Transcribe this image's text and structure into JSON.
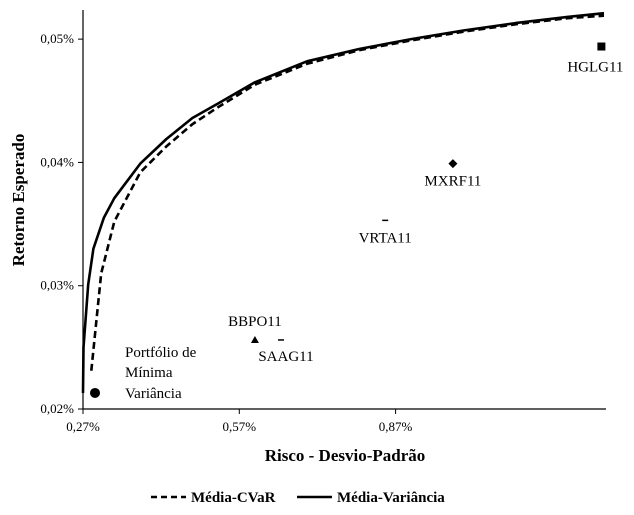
{
  "chart_data": {
    "type": "line",
    "xlabel": "Risco - Desvio-Padrão",
    "ylabel": "Retorno Esperado",
    "xlim": [
      0.27,
      1.27
    ],
    "ylim": [
      0.02,
      0.0522
    ],
    "xticks": [
      0.27,
      0.57,
      0.87
    ],
    "xtick_labels": [
      "0,27%",
      "0,57%",
      "0,87%"
    ],
    "yticks": [
      0.02,
      0.03,
      0.04,
      0.05
    ],
    "ytick_labels": [
      "0,02%",
      "0,03%",
      "0,04%",
      "0,05%"
    ],
    "grid": false,
    "legend_position": "bottom",
    "series": [
      {
        "name": "Média-CVaR",
        "style": "dashed",
        "color": "#000000",
        "x": [
          0.286,
          0.305,
          0.33,
          0.38,
          0.43,
          0.48,
          0.53,
          0.6,
          0.7,
          0.8,
          0.9,
          1.0,
          1.1,
          1.2,
          1.27
        ],
        "y": [
          0.0231,
          0.031,
          0.0352,
          0.0392,
          0.0413,
          0.0431,
          0.0445,
          0.0463,
          0.048,
          0.0491,
          0.0499,
          0.0506,
          0.0512,
          0.0517,
          0.0519
        ]
      },
      {
        "name": "Média-Variância",
        "style": "solid",
        "color": "#000000",
        "x": [
          0.27,
          0.271,
          0.28,
          0.29,
          0.31,
          0.33,
          0.38,
          0.43,
          0.48,
          0.53,
          0.6,
          0.7,
          0.8,
          0.9,
          1.0,
          1.1,
          1.2,
          1.27
        ],
        "y": [
          0.0213,
          0.025,
          0.0301,
          0.033,
          0.0355,
          0.0371,
          0.0399,
          0.0419,
          0.0436,
          0.0448,
          0.0465,
          0.0482,
          0.0492,
          0.05,
          0.0507,
          0.0513,
          0.0518,
          0.0521
        ]
      }
    ],
    "points": [
      {
        "label": "HGLG11",
        "x": 1.265,
        "y": 0.0494,
        "marker": "square",
        "label_pos": "below-left"
      },
      {
        "label": "MXRF11",
        "x": 0.98,
        "y": 0.0399,
        "marker": "diamond",
        "label_pos": "below"
      },
      {
        "label": "VRTA11",
        "x": 0.85,
        "y": 0.0353,
        "marker": "dash",
        "label_pos": "below"
      },
      {
        "label": "BBPO11",
        "x": 0.6,
        "y": 0.0256,
        "marker": "triangle",
        "label_pos": "above"
      },
      {
        "label": "SAAG11",
        "x": 0.65,
        "y": 0.0256,
        "marker": "dash",
        "label_pos": "below"
      }
    ],
    "min_variance": {
      "x": 0.27,
      "y": 0.0213,
      "label_lines": [
        "Portfólio de",
        "Mínima",
        "Variância"
      ]
    }
  }
}
